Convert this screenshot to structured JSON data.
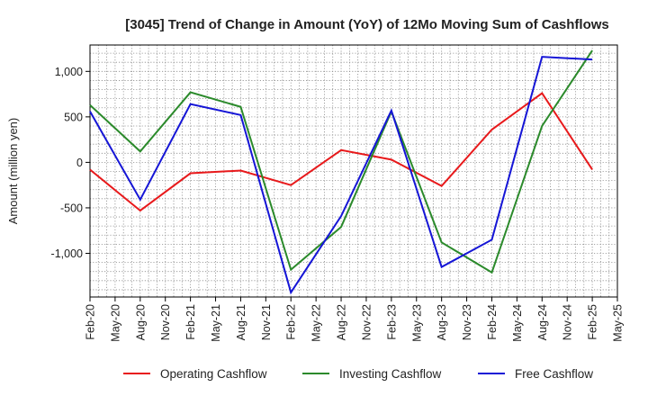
{
  "chart_data": {
    "type": "line",
    "title": "[3045]  Trend of Change in Amount (YoY) of 12Mo Moving Sum of Cashflows",
    "xlabel": "",
    "ylabel": "Amount (million yen)",
    "ylim": [
      -1480,
      1290
    ],
    "yticks": [
      1000,
      500,
      0,
      -500,
      -1000
    ],
    "ytick_labels": [
      "1,000",
      "500",
      "0",
      "-500",
      "-1,000"
    ],
    "x_tick_labels": [
      "Feb-20",
      "May-20",
      "Aug-20",
      "Nov-20",
      "Feb-21",
      "May-21",
      "Aug-21",
      "Nov-21",
      "Feb-22",
      "May-22",
      "Aug-22",
      "Nov-22",
      "Feb-23",
      "May-23",
      "Aug-23",
      "Nov-23",
      "Feb-24",
      "May-24",
      "Aug-24",
      "Nov-24",
      "Feb-25",
      "May-25"
    ],
    "grid": true,
    "legend_position": "bottom",
    "series": [
      {
        "name": "Operating Cashflow",
        "color": "#e8191b",
        "points": [
          [
            0,
            -80
          ],
          [
            2,
            -530
          ],
          [
            4,
            -120
          ],
          [
            6,
            -90
          ],
          [
            8,
            -250
          ],
          [
            10,
            135
          ],
          [
            12,
            30
          ],
          [
            14,
            -260
          ],
          [
            16,
            360
          ],
          [
            18,
            760
          ],
          [
            20,
            -80
          ]
        ]
      },
      {
        "name": "Investing Cashflow",
        "color": "#2b8a2b",
        "points": [
          [
            0,
            630
          ],
          [
            2,
            120
          ],
          [
            4,
            770
          ],
          [
            6,
            610
          ],
          [
            8,
            -1180
          ],
          [
            10,
            -710
          ],
          [
            12,
            560
          ],
          [
            14,
            -880
          ],
          [
            16,
            -1210
          ],
          [
            18,
            400
          ],
          [
            20,
            1230
          ]
        ]
      },
      {
        "name": "Free Cashflow",
        "color": "#1515d6",
        "points": [
          [
            0,
            560
          ],
          [
            2,
            -410
          ],
          [
            4,
            640
          ],
          [
            6,
            520
          ],
          [
            8,
            -1430
          ],
          [
            10,
            -590
          ],
          [
            12,
            570
          ],
          [
            14,
            -1150
          ],
          [
            16,
            -850
          ],
          [
            18,
            1160
          ],
          [
            20,
            1130
          ]
        ]
      }
    ]
  }
}
